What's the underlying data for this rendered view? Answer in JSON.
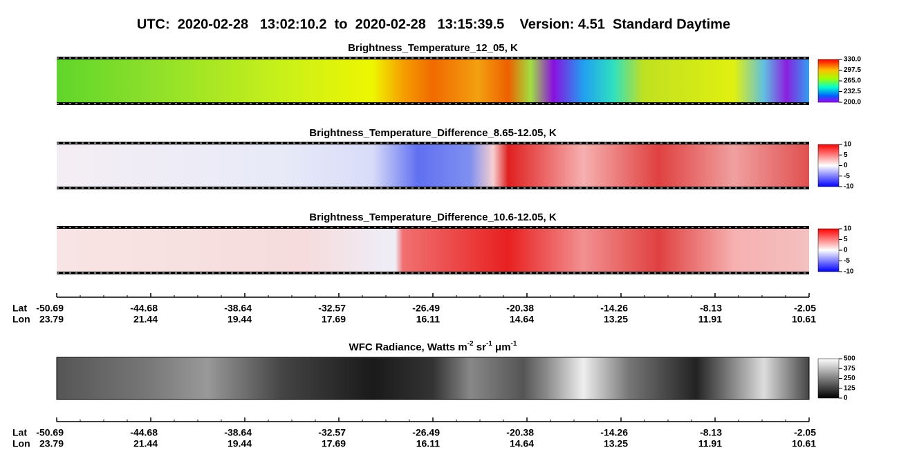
{
  "title": "UTC:  2020-02-28   13:02:10.2  to  2020-02-28   13:15:39.5    Version: 4.51  Standard Daytime",
  "panels": [
    {
      "title": "Brightness_Temperature_12_05, K",
      "colorbar": [
        "330.0",
        "297.5",
        "265.0",
        "232.5",
        "200.0"
      ]
    },
    {
      "title": "Brightness_Temperature_Difference_8.65-12.05, K",
      "colorbar": [
        "10",
        "5",
        "0",
        "-5",
        "-10"
      ]
    },
    {
      "title": "Brightness_Temperature_Difference_10.6-12.05, K",
      "colorbar": [
        "10",
        "5",
        "0",
        "-5",
        "-10"
      ]
    },
    {
      "title_parts": [
        "WFC Radiance, Watts m",
        "-2",
        " sr",
        "-1",
        " μm",
        "-1"
      ],
      "colorbar": [
        "500",
        "375",
        "250",
        "125",
        "0"
      ]
    }
  ],
  "axes": [
    {
      "lat_label": "Lat",
      "lon_label": "Lon",
      "lat": [
        "-50.69",
        "-44.68",
        "-38.64",
        "-32.57",
        "-26.49",
        "-20.38",
        "-14.26",
        "-8.13",
        "-2.05"
      ],
      "lon": [
        "23.79",
        "21.44",
        "19.44",
        "17.69",
        "16.11",
        "14.64",
        "13.25",
        "11.91",
        "10.61"
      ]
    },
    {
      "lat_label": "Lat",
      "lon_label": "Lon",
      "lat": [
        "-50.69",
        "-44.68",
        "-38.64",
        "-32.57",
        "-26.49",
        "-20.38",
        "-14.26",
        "-8.13",
        "-2.05"
      ],
      "lon": [
        "23.79",
        "21.44",
        "19.44",
        "17.69",
        "16.11",
        "14.64",
        "13.25",
        "11.91",
        "10.61"
      ]
    }
  ]
}
